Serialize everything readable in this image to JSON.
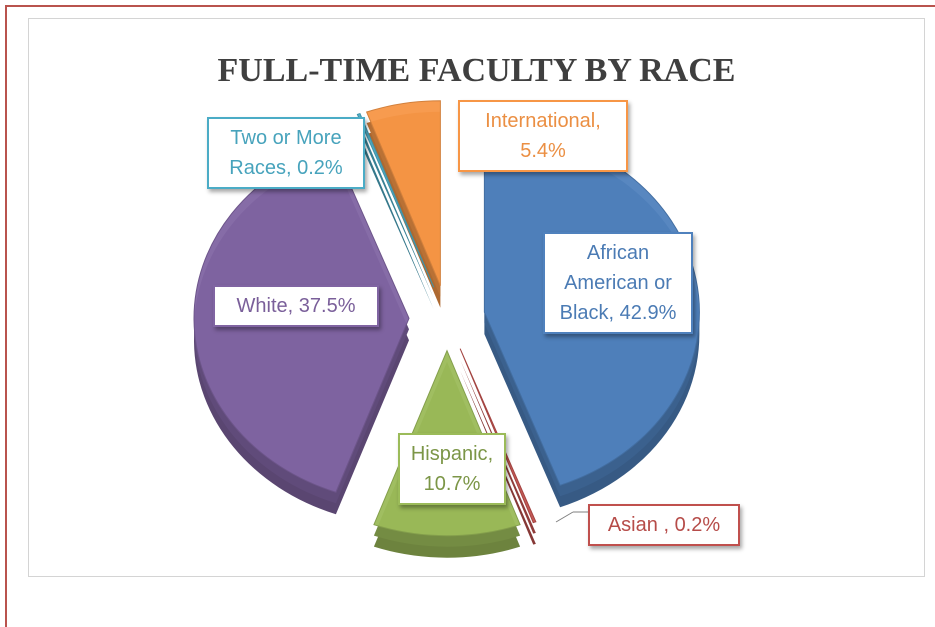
{
  "chart_data": {
    "type": "pie",
    "title": "FULL-TIME FACULTY BY RACE",
    "categories": [
      "African American or Black",
      "Asian ",
      "Hispanic",
      "White",
      "Two or More Races",
      "International"
    ],
    "values": [
      42.9,
      0.2,
      10.7,
      37.5,
      0.2,
      5.4
    ],
    "value_labels": [
      "42.9%",
      "0.2%",
      "10.7%",
      "37.5%",
      "0.2%",
      "5.4%"
    ],
    "label_separator": ", ",
    "colors": [
      "#4f81bd",
      "#c0504d",
      "#9bbb59",
      "#8064a2",
      "#4bacc6",
      "#f79646"
    ]
  }
}
